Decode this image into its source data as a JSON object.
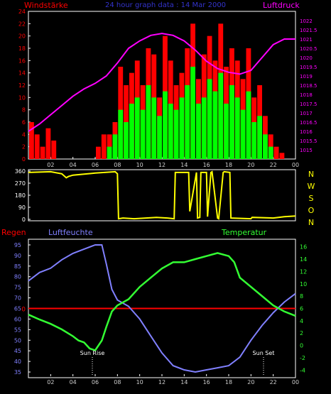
{
  "header": {
    "left_label": "Windstärke",
    "title": "24 hour graph data : 14 Mar 2000",
    "right_label": "Luftdruck"
  },
  "compass": [
    "N",
    "W",
    "S",
    "O",
    "N"
  ],
  "middle": {
    "left_label": "Regen",
    "center_label": "Luftfeuchte",
    "right_label": "Temperatur"
  },
  "annotations": {
    "sunrise": "Sun Rise",
    "sunset": "Sun Set"
  },
  "colors": {
    "wind_gust": "#ff0000",
    "wind_avg": "#00ff00",
    "pressure": "#ff00ff",
    "direction": "#ffff00",
    "humidity": "#8080ff",
    "temperature": "#33ff33",
    "rain": "#ff0000",
    "frame": "#ffffff",
    "header_text_left": "#ff0000",
    "header_text_title": "#3333cc"
  },
  "chart_data": [
    {
      "type": "bar",
      "id": "wind_pressure",
      "x_ticks": [
        "02",
        "04",
        "06",
        "08",
        "10",
        "12",
        "14",
        "16",
        "18",
        "20",
        "22",
        "00"
      ],
      "y_left": {
        "label": "Windstärke",
        "range": [
          0,
          24
        ],
        "ticks": [
          0,
          2,
          4,
          6,
          8,
          10,
          12,
          14,
          16,
          18,
          20,
          22,
          24
        ]
      },
      "y_right": {
        "label": "Luftdruck",
        "range": [
          1014.5,
          1022.5
        ],
        "ticks": [
          "1015",
          "1015.5",
          "1016",
          "1016.5",
          "1017",
          "1017.5",
          "1018",
          "1018.5",
          "1019",
          "1019.5",
          "1020",
          "1020.5",
          "1021",
          "1021.5",
          "1022"
        ]
      },
      "series": [
        {
          "name": "Windstärke",
          "x": [
            0.5,
            1,
            1.5,
            2,
            2.5,
            3,
            3.5,
            4,
            4.5,
            5,
            5.5,
            6,
            6.5,
            7,
            7.5,
            8,
            8.5,
            9,
            9.5,
            10,
            10.5,
            11,
            11.5,
            12,
            12.5,
            13,
            13.5,
            14,
            14.5,
            15,
            15.5,
            16,
            16.5,
            17,
            17.5,
            18,
            18.5,
            19,
            19.5,
            20,
            20.5,
            21,
            21.5,
            22,
            22.5,
            23,
            23.5
          ],
          "values": [
            6,
            4,
            2,
            5,
            3,
            0,
            0,
            0,
            0,
            0,
            0,
            0,
            2,
            4,
            4,
            6,
            15,
            12,
            14,
            16,
            12,
            18,
            17,
            10,
            20,
            16,
            12,
            14,
            18,
            22,
            13,
            17,
            20,
            16,
            22,
            15,
            18,
            16,
            13,
            18,
            10,
            12,
            7,
            4,
            2,
            1,
            0
          ]
        },
        {
          "name": "Windstärke (Mittel)",
          "x": [
            7.5,
            8,
            8.5,
            9,
            9.5,
            10,
            10.5,
            11,
            11.5,
            12,
            12.5,
            13,
            13.5,
            14,
            14.5,
            15,
            15.5,
            16,
            16.5,
            17,
            17.5,
            18,
            18.5,
            19,
            19.5,
            20,
            20.5,
            21,
            21.5,
            22
          ],
          "values": [
            2,
            4,
            8,
            6,
            9,
            10,
            8,
            12,
            10,
            7,
            11,
            9,
            8,
            10,
            12,
            15,
            9,
            10,
            13,
            11,
            14,
            9,
            12,
            10,
            8,
            11,
            6,
            7,
            4,
            2
          ]
        },
        {
          "name": "Luftdruck",
          "x": [
            0,
            1,
            2,
            3,
            4,
            5,
            6,
            7,
            8,
            9,
            10,
            11,
            12,
            13,
            14,
            15,
            16,
            17,
            18,
            19,
            20,
            21,
            22,
            23,
            24
          ],
          "values": [
            1016.0,
            1016.4,
            1016.9,
            1017.4,
            1017.9,
            1018.3,
            1018.6,
            1019.0,
            1019.7,
            1020.5,
            1020.9,
            1021.2,
            1021.3,
            1021.2,
            1020.9,
            1020.4,
            1019.8,
            1019.4,
            1019.2,
            1019.1,
            1019.3,
            1020.0,
            1020.7,
            1021.0,
            1021.0
          ]
        }
      ]
    },
    {
      "type": "line",
      "id": "wind_direction",
      "x_ticks": [
        "02",
        "04",
        "06",
        "08",
        "10",
        "12",
        "14",
        "16",
        "18",
        "20",
        "22",
        "00"
      ],
      "y_range": [
        0,
        360
      ],
      "y_ticks": [
        0,
        90,
        180,
        270,
        360
      ],
      "series": [
        {
          "name": "Windrichtung",
          "x": [
            0,
            2,
            3,
            3.4,
            3.6,
            4,
            6,
            7.8,
            8,
            8.1,
            8.5,
            9.5,
            11.5,
            12.5,
            13.1,
            13.2,
            14.4,
            14.5,
            15.1,
            15.2,
            15.4,
            15.5,
            16,
            16.1,
            16.4,
            16.5,
            17,
            17.1,
            17.5,
            17.6,
            18.1,
            18.2,
            20,
            20.1,
            22,
            23,
            24
          ],
          "values": [
            350,
            355,
            340,
            310,
            320,
            330,
            345,
            355,
            340,
            5,
            10,
            5,
            15,
            10,
            5,
            350,
            350,
            60,
            350,
            10,
            15,
            350,
            350,
            20,
            350,
            355,
            10,
            5,
            350,
            355,
            350,
            10,
            5,
            15,
            10,
            20,
            25
          ]
        }
      ]
    },
    {
      "type": "line",
      "id": "humidity_temperature",
      "x_ticks": [
        "02",
        "04",
        "06",
        "08",
        "10",
        "12",
        "14",
        "16",
        "18",
        "20",
        "22",
        "00"
      ],
      "y_left": {
        "label": "Luftfeuchte",
        "range": [
          33,
          97
        ],
        "ticks": [
          35,
          40,
          45,
          50,
          55,
          60,
          65,
          70,
          75,
          80,
          85,
          90,
          95
        ]
      },
      "y_right": {
        "label": "Temperatur",
        "range": [
          -5,
          17
        ],
        "ticks": [
          -4,
          -2,
          0,
          2,
          4,
          6,
          8,
          10,
          12,
          14,
          16
        ]
      },
      "rain": {
        "label": "Regen",
        "value": 0
      },
      "series": [
        {
          "name": "Luftfeuchte",
          "axis": "left",
          "x": [
            0,
            1,
            2,
            3,
            4,
            5,
            6,
            6.6,
            7,
            7.5,
            8,
            9,
            10,
            11,
            12,
            13,
            14,
            15,
            16,
            17,
            18,
            19,
            20,
            21,
            22,
            23,
            24
          ],
          "values": [
            78,
            82,
            84,
            88,
            91,
            93,
            95,
            95,
            86,
            74,
            69,
            66,
            60,
            52,
            44,
            38,
            36,
            35,
            36,
            37,
            38,
            42,
            50,
            57,
            63,
            68,
            72
          ]
        },
        {
          "name": "Temperatur",
          "axis": "right",
          "x": [
            0,
            1,
            2,
            3,
            4,
            4.5,
            5,
            5.5,
            6,
            6.6,
            7,
            7.5,
            8,
            9,
            10,
            11,
            12,
            13,
            14,
            15,
            16,
            17,
            18,
            18.5,
            19,
            20,
            21,
            22,
            23,
            24
          ],
          "values": [
            5.0,
            4.2,
            3.5,
            2.6,
            1.5,
            0.8,
            0.5,
            -0.5,
            -0.8,
            0.8,
            3.0,
            5.5,
            6.5,
            7.5,
            9.5,
            11.0,
            12.5,
            13.5,
            13.5,
            14.0,
            14.5,
            15.0,
            14.5,
            13.5,
            11.0,
            9.5,
            8.0,
            6.5,
            5.5,
            4.8
          ]
        }
      ]
    }
  ]
}
